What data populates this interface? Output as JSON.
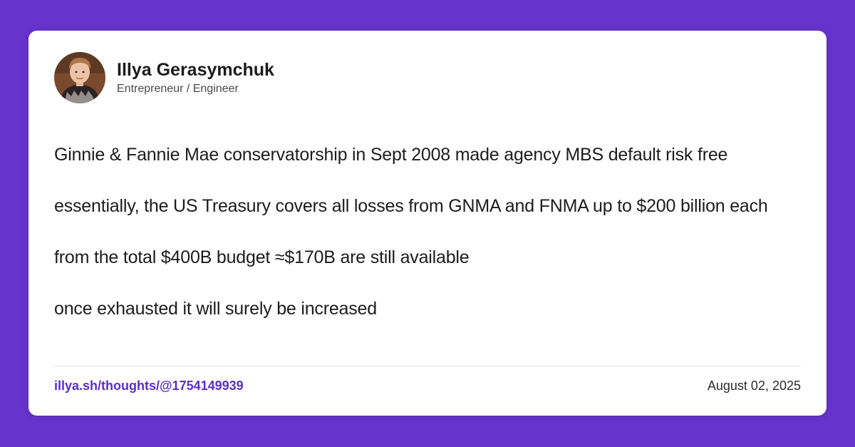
{
  "page": {
    "background_color": "#6633cc",
    "accent_color": "#5a2ec9"
  },
  "author": {
    "name": "Illya Gerasymchuk",
    "title": "Entrepreneur / Engineer",
    "avatar_icon": "avatar-photo"
  },
  "post": {
    "paragraphs": [
      "Ginnie & Fannie Mae conservatorship in Sept 2008 made agency MBS default risk free",
      "essentially, the US Treasury covers all losses from GNMA and FNMA up to $200 billion each",
      "from the total $400B budget ≈$170B are still available",
      "once exhausted it will surely be increased"
    ]
  },
  "footer": {
    "link": "illya.sh/thoughts/@1754149939",
    "date": "August 02, 2025"
  }
}
